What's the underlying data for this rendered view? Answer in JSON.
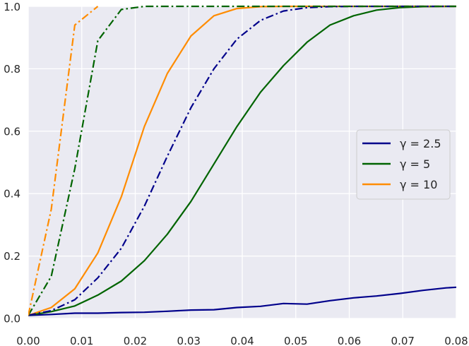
{
  "chart_data": {
    "type": "line",
    "title": "",
    "xlabel": "",
    "ylabel": "",
    "xlim": [
      0.0,
      0.08
    ],
    "ylim": [
      0.0,
      1.0
    ],
    "xticks": [
      0.0,
      0.01,
      0.02,
      0.03,
      0.04,
      0.05,
      0.06,
      0.07,
      0.08
    ],
    "xtick_labels": [
      "0.00",
      "0.01",
      "0.02",
      "0.03",
      "0.04",
      "0.05",
      "0.06",
      "0.07",
      "0.08"
    ],
    "yticks": [
      0.0,
      0.2,
      0.4,
      0.6,
      0.8,
      1.0
    ],
    "ytick_labels": [
      "0.0",
      "0.2",
      "0.4",
      "0.6",
      "0.8",
      "1.0"
    ],
    "grid": true,
    "background": "#eaeaf2",
    "grid_color": "#ffffff",
    "legend_position": "center-right",
    "legend": [
      {
        "label": "γ = 2.5",
        "color": "#00008b"
      },
      {
        "label": "γ = 5",
        "color": "#006400"
      },
      {
        "label": "γ = 10",
        "color": "#ff8c00"
      }
    ],
    "series": [
      {
        "color": "#00008b",
        "style": "solid",
        "x": [
          0.0,
          0.0043,
          0.0087,
          0.013,
          0.0174,
          0.0217,
          0.026,
          0.0304,
          0.0347,
          0.039,
          0.0434,
          0.0477,
          0.0521,
          0.0564,
          0.0608,
          0.0651,
          0.0694,
          0.0738,
          0.0781,
          0.08
        ],
        "y": [
          0.01,
          0.013,
          0.017,
          0.017,
          0.019,
          0.02,
          0.023,
          0.027,
          0.028,
          0.035,
          0.039,
          0.048,
          0.046,
          0.057,
          0.066,
          0.072,
          0.08,
          0.09,
          0.098,
          0.1
        ]
      },
      {
        "color": "#006400",
        "style": "solid",
        "x": [
          0.0,
          0.0043,
          0.0087,
          0.013,
          0.0174,
          0.0217,
          0.026,
          0.0304,
          0.0347,
          0.039,
          0.0434,
          0.0477,
          0.0521,
          0.0564,
          0.0608,
          0.0651,
          0.0694,
          0.0738,
          0.0781,
          0.08
        ],
        "y": [
          0.01,
          0.022,
          0.04,
          0.075,
          0.12,
          0.185,
          0.27,
          0.375,
          0.495,
          0.615,
          0.725,
          0.81,
          0.885,
          0.94,
          0.97,
          0.988,
          0.996,
          0.999,
          1.0,
          1.0
        ]
      },
      {
        "color": "#ff8c00",
        "style": "solid",
        "x": [
          0.0,
          0.0043,
          0.0087,
          0.013,
          0.0174,
          0.0217,
          0.026,
          0.0304,
          0.0347,
          0.039,
          0.0434,
          0.0477,
          0.0521,
          0.08
        ],
        "y": [
          0.01,
          0.035,
          0.095,
          0.21,
          0.39,
          0.615,
          0.785,
          0.905,
          0.97,
          0.993,
          0.999,
          1.0,
          1.0,
          1.0
        ]
      },
      {
        "color": "#00008b",
        "style": "dashdot",
        "x": [
          0.0,
          0.0043,
          0.0087,
          0.013,
          0.0174,
          0.0217,
          0.026,
          0.0304,
          0.0347,
          0.039,
          0.0434,
          0.0477,
          0.0521,
          0.0564,
          0.0608,
          0.08
        ],
        "y": [
          0.01,
          0.025,
          0.06,
          0.13,
          0.225,
          0.36,
          0.52,
          0.675,
          0.8,
          0.895,
          0.955,
          0.985,
          0.996,
          0.999,
          1.0,
          1.0
        ]
      },
      {
        "color": "#006400",
        "style": "dashdot",
        "x": [
          0.0,
          0.0043,
          0.0087,
          0.013,
          0.0174,
          0.0217,
          0.08
        ],
        "y": [
          0.01,
          0.135,
          0.48,
          0.89,
          0.99,
          1.0,
          1.0
        ]
      },
      {
        "color": "#ff8c00",
        "style": "dashdot",
        "x": [
          0.0,
          0.0043,
          0.0087,
          0.013
        ],
        "y": [
          0.01,
          0.35,
          0.94,
          1.0
        ]
      }
    ]
  }
}
